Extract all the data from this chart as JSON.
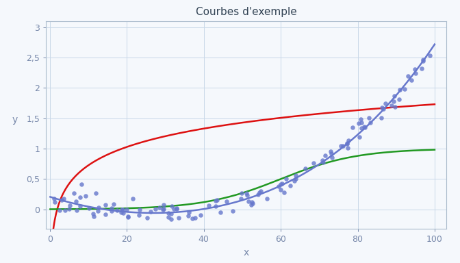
{
  "title": "Courbes d'exemple",
  "xlabel": "x",
  "ylabel": "y",
  "xlim": [
    -1,
    103
  ],
  "ylim": [
    -0.32,
    3.1
  ],
  "background_color": "#f5f8fc",
  "plot_bg_color": "#f5f8fc",
  "grid_color": "#c8d8e8",
  "log_curve": {
    "color": "#dd1111",
    "a": 0.434,
    "b": -0.28
  },
  "logistic_curve": {
    "color": "#229922",
    "L": 1.0,
    "k": 0.1,
    "x0": 60
  },
  "poly_pts_x": [
    0,
    15,
    35,
    55,
    75,
    100
  ],
  "poly_pts_y": [
    0.2,
    0.02,
    -0.08,
    0.3,
    0.95,
    2.72
  ],
  "poly_color": "#6677cc",
  "scatter": {
    "color": "#6677cc",
    "alpha": 0.8,
    "size": 22,
    "seed": 42,
    "n_points": 130,
    "noise_std": 0.09
  },
  "tick_labels_x": [
    0,
    20,
    40,
    60,
    80,
    100
  ],
  "tick_labels_y": [
    0.0,
    0.5,
    1.0,
    1.5,
    2.0,
    2.5,
    3.0
  ],
  "title_fontsize": 11,
  "axis_label_fontsize": 10,
  "tick_fontsize": 9,
  "spine_color": "#aabbcc",
  "tick_color": "#7788aa"
}
